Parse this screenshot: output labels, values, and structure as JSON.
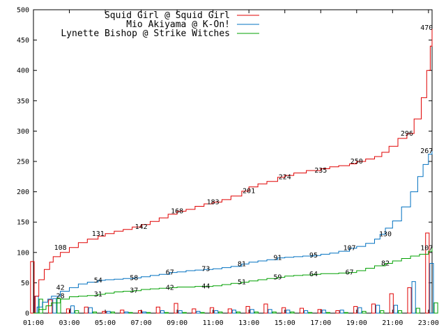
{
  "chart_data": {
    "type": "line",
    "title": "",
    "xlabel": "",
    "ylabel": "",
    "x_tick_labels": [
      "01:00",
      "03:00",
      "05:00",
      "07:00",
      "09:00",
      "11:00",
      "13:00",
      "15:00",
      "17:00",
      "19:00",
      "21:00",
      "23:00"
    ],
    "y_ticks": [
      0,
      50,
      100,
      150,
      200,
      250,
      300,
      350,
      400,
      450,
      500
    ],
    "xlim_hours": [
      1,
      23.2
    ],
    "ylim": [
      0,
      500
    ],
    "legend_position": "top",
    "series": [
      {
        "name": "Squid Girl @ Squid Girl",
        "color": "#e00000",
        "cumulative": [
          [
            1,
            0
          ],
          [
            1.1,
            28
          ],
          [
            1.3,
            55
          ],
          [
            1.6,
            72
          ],
          [
            1.9,
            84
          ],
          [
            2.1,
            93
          ],
          [
            2.5,
            100
          ],
          [
            3,
            108
          ],
          [
            3.5,
            116
          ],
          [
            4,
            122
          ],
          [
            4.6,
            127
          ],
          [
            5,
            131
          ],
          [
            5.5,
            135
          ],
          [
            6,
            138
          ],
          [
            6.5,
            142
          ],
          [
            7,
            146
          ],
          [
            7.5,
            151
          ],
          [
            8,
            157
          ],
          [
            8.5,
            163
          ],
          [
            9,
            168
          ],
          [
            9.5,
            171
          ],
          [
            10,
            176
          ],
          [
            10.5,
            180
          ],
          [
            11,
            183
          ],
          [
            11.5,
            187
          ],
          [
            12,
            193
          ],
          [
            12.6,
            201
          ],
          [
            13,
            208
          ],
          [
            13.5,
            213
          ],
          [
            14,
            217
          ],
          [
            14.6,
            224
          ],
          [
            15,
            227
          ],
          [
            15.5,
            231
          ],
          [
            16.2,
            235
          ],
          [
            17,
            238
          ],
          [
            17.5,
            241
          ],
          [
            18,
            243
          ],
          [
            18.6,
            246
          ],
          [
            19,
            250
          ],
          [
            19.5,
            254
          ],
          [
            20,
            258
          ],
          [
            20.4,
            265
          ],
          [
            20.8,
            275
          ],
          [
            21.3,
            288
          ],
          [
            21.8,
            296
          ],
          [
            22.2,
            320
          ],
          [
            22.6,
            355
          ],
          [
            22.9,
            400
          ],
          [
            23.1,
            440
          ],
          [
            23.2,
            470
          ]
        ],
        "labeled_values": [
          [
            2.5,
            108
          ],
          [
            4.6,
            131
          ],
          [
            7,
            142
          ],
          [
            9,
            168
          ],
          [
            11,
            183
          ],
          [
            13,
            201
          ],
          [
            15,
            224
          ],
          [
            17,
            235
          ],
          [
            19,
            250
          ],
          [
            21.8,
            296
          ],
          [
            22.9,
            470
          ]
        ],
        "hourly_bars": [
          [
            1,
            85
          ],
          [
            2,
            22
          ],
          [
            3,
            7
          ],
          [
            4,
            10
          ],
          [
            5,
            3
          ],
          [
            6,
            5
          ],
          [
            7,
            4
          ],
          [
            8,
            10
          ],
          [
            9,
            16
          ],
          [
            10,
            7
          ],
          [
            11,
            9
          ],
          [
            12,
            7
          ],
          [
            13,
            11
          ],
          [
            14,
            15
          ],
          [
            15,
            9
          ],
          [
            16,
            8
          ],
          [
            17,
            6
          ],
          [
            18,
            4
          ],
          [
            19,
            11
          ],
          [
            20,
            15
          ],
          [
            21,
            32
          ],
          [
            22,
            42
          ],
          [
            23,
            132
          ]
        ]
      },
      {
        "name": "Mio Akiyama @ K-On!",
        "color": "#0070c0",
        "cumulative": [
          [
            1,
            0
          ],
          [
            1.2,
            10
          ],
          [
            1.5,
            18
          ],
          [
            1.8,
            23
          ],
          [
            2,
            28
          ],
          [
            2.5,
            36
          ],
          [
            3,
            42
          ],
          [
            3.5,
            48
          ],
          [
            4,
            51
          ],
          [
            4.6,
            54
          ],
          [
            5,
            55
          ],
          [
            5.5,
            56
          ],
          [
            6,
            57
          ],
          [
            6.6,
            58
          ],
          [
            7,
            60
          ],
          [
            7.5,
            62
          ],
          [
            8,
            64
          ],
          [
            8.6,
            67
          ],
          [
            9,
            68
          ],
          [
            9.5,
            70
          ],
          [
            10,
            71
          ],
          [
            10.5,
            72
          ],
          [
            11,
            73
          ],
          [
            11.5,
            75
          ],
          [
            12,
            77
          ],
          [
            12.6,
            81
          ],
          [
            13,
            84
          ],
          [
            13.5,
            86
          ],
          [
            14,
            88
          ],
          [
            14.6,
            91
          ],
          [
            15,
            92
          ],
          [
            15.5,
            93
          ],
          [
            16,
            94
          ],
          [
            16.6,
            95
          ],
          [
            17,
            97
          ],
          [
            17.5,
            99
          ],
          [
            18,
            102
          ],
          [
            18.6,
            107
          ],
          [
            19,
            110
          ],
          [
            19.5,
            115
          ],
          [
            20,
            122
          ],
          [
            20.3,
            130
          ],
          [
            20.6,
            140
          ],
          [
            21,
            152
          ],
          [
            21.5,
            175
          ],
          [
            22,
            200
          ],
          [
            22.4,
            225
          ],
          [
            22.7,
            245
          ],
          [
            23,
            262
          ],
          [
            23.2,
            267
          ]
        ],
        "labeled_values": [
          [
            2.5,
            42
          ],
          [
            4.6,
            54
          ],
          [
            6.6,
            58
          ],
          [
            8.6,
            67
          ],
          [
            10.6,
            73
          ],
          [
            12.6,
            81
          ],
          [
            14.6,
            91
          ],
          [
            16.6,
            95
          ],
          [
            18.6,
            107
          ],
          [
            20.6,
            130
          ],
          [
            22.9,
            267
          ]
        ],
        "hourly_bars": [
          [
            1,
            28
          ],
          [
            2,
            24
          ],
          [
            3,
            12
          ],
          [
            4,
            9
          ],
          [
            5,
            3
          ],
          [
            6,
            2
          ],
          [
            7,
            2
          ],
          [
            8,
            4
          ],
          [
            9,
            4
          ],
          [
            10,
            3
          ],
          [
            11,
            4
          ],
          [
            12,
            5
          ],
          [
            13,
            6
          ],
          [
            14,
            6
          ],
          [
            15,
            5
          ],
          [
            16,
            4
          ],
          [
            17,
            5
          ],
          [
            18,
            5
          ],
          [
            19,
            9
          ],
          [
            20,
            13
          ],
          [
            21,
            13
          ],
          [
            22,
            52
          ],
          [
            23,
            82
          ]
        ]
      },
      {
        "name": "Lynette Bishop @ Strike Witches",
        "color": "#00a000",
        "cumulative": [
          [
            1,
            0
          ],
          [
            1.3,
            6
          ],
          [
            1.7,
            12
          ],
          [
            2,
            17
          ],
          [
            2.5,
            23
          ],
          [
            3,
            27
          ],
          [
            3.5,
            28
          ],
          [
            4,
            29
          ],
          [
            4.6,
            31
          ],
          [
            5,
            33
          ],
          [
            5.5,
            35
          ],
          [
            6,
            36
          ],
          [
            6.6,
            37
          ],
          [
            7,
            39
          ],
          [
            7.5,
            40
          ],
          [
            8,
            41
          ],
          [
            8.6,
            42
          ],
          [
            9,
            43
          ],
          [
            9.5,
            43
          ],
          [
            10,
            44
          ],
          [
            10.5,
            44
          ],
          [
            11,
            45
          ],
          [
            11.5,
            47
          ],
          [
            12,
            49
          ],
          [
            12.6,
            51
          ],
          [
            13,
            53
          ],
          [
            13.5,
            55
          ],
          [
            14,
            57
          ],
          [
            14.6,
            59
          ],
          [
            15,
            61
          ],
          [
            15.5,
            62
          ],
          [
            16,
            63
          ],
          [
            16.6,
            64
          ],
          [
            17,
            65
          ],
          [
            17.5,
            65
          ],
          [
            18,
            66
          ],
          [
            18.6,
            67
          ],
          [
            19,
            70
          ],
          [
            19.5,
            74
          ],
          [
            20,
            78
          ],
          [
            20.6,
            82
          ],
          [
            21,
            86
          ],
          [
            21.5,
            90
          ],
          [
            22,
            94
          ],
          [
            22.5,
            97
          ],
          [
            23,
            102
          ],
          [
            23.2,
            107
          ]
        ],
        "labeled_values": [
          [
            2.5,
            28
          ],
          [
            4.6,
            31
          ],
          [
            6.6,
            37
          ],
          [
            8.6,
            42
          ],
          [
            10.6,
            44
          ],
          [
            12.6,
            51
          ],
          [
            14.6,
            59
          ],
          [
            16.6,
            64
          ],
          [
            18.6,
            67
          ],
          [
            20.6,
            82
          ],
          [
            22.9,
            107
          ]
        ],
        "hourly_bars": [
          [
            1,
            23
          ],
          [
            2,
            24
          ],
          [
            3,
            4
          ],
          [
            4,
            2
          ],
          [
            5,
            2
          ],
          [
            6,
            1
          ],
          [
            7,
            1
          ],
          [
            8,
            1
          ],
          [
            9,
            1
          ],
          [
            10,
            1
          ],
          [
            11,
            2
          ],
          [
            12,
            2
          ],
          [
            13,
            2
          ],
          [
            14,
            2
          ],
          [
            15,
            2
          ],
          [
            16,
            1
          ],
          [
            17,
            1
          ],
          [
            18,
            1
          ],
          [
            19,
            3
          ],
          [
            20,
            4
          ],
          [
            21,
            4
          ],
          [
            22,
            8
          ],
          [
            23,
            17
          ]
        ]
      }
    ]
  }
}
